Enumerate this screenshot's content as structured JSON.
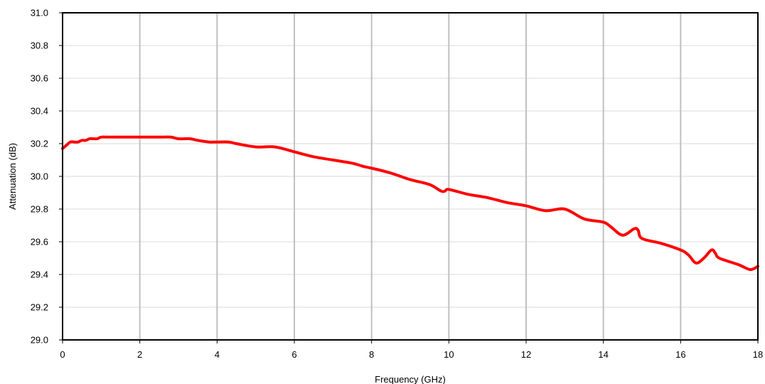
{
  "chart_data": {
    "type": "line",
    "title": "",
    "xlabel": "Frequency (GHz)",
    "ylabel": "Attenuation (dB)",
    "xlim": [
      0,
      18
    ],
    "ylim": [
      29.0,
      31.0
    ],
    "x_ticks": [
      0,
      2,
      4,
      6,
      8,
      10,
      12,
      14,
      16,
      18
    ],
    "x_tick_labels": [
      "0",
      "2",
      "4",
      "6",
      "8",
      "10",
      "12",
      "14",
      "16",
      "18"
    ],
    "y_ticks": [
      29.0,
      29.2,
      29.4,
      29.6,
      29.8,
      30.0,
      30.2,
      30.4,
      30.6,
      30.8,
      31.0
    ],
    "y_tick_labels": [
      "29.0",
      "29.2",
      "29.4",
      "29.6",
      "29.8",
      "30.0",
      "30.2",
      "30.4",
      "30.6",
      "30.8",
      "31.0"
    ],
    "grid": "vertical",
    "legend": "none",
    "colors": {
      "line": "#ff0000",
      "grid": "#c0c0c0",
      "frame": "#000000"
    },
    "series": [
      {
        "x": [
          0,
          0.1,
          0.2,
          0.3,
          0.4,
          0.5,
          0.6,
          0.7,
          0.8,
          0.9,
          1.0,
          1.2,
          1.5,
          2.0,
          2.5,
          2.8,
          3.0,
          3.3,
          3.5,
          3.8,
          4.0,
          4.3,
          4.5,
          5.0,
          5.5,
          6.0,
          6.5,
          7.0,
          7.5,
          7.8,
          8.0,
          8.5,
          9.0,
          9.5,
          9.8,
          9.9,
          10.0,
          10.5,
          11.0,
          11.5,
          12.0,
          12.5,
          13.0,
          13.5,
          14.0,
          14.2,
          14.5,
          14.8,
          14.9,
          15.0,
          15.5,
          16.0,
          16.2,
          16.4,
          16.6,
          16.8,
          16.9,
          17.0,
          17.5,
          17.8,
          18.0
        ],
        "y": [
          30.17,
          30.19,
          30.21,
          30.21,
          30.21,
          30.22,
          30.22,
          30.23,
          30.23,
          30.23,
          30.24,
          30.24,
          30.24,
          30.24,
          30.24,
          30.24,
          30.23,
          30.23,
          30.22,
          30.21,
          30.21,
          30.21,
          30.2,
          30.18,
          30.18,
          30.15,
          30.12,
          30.1,
          30.08,
          30.06,
          30.05,
          30.02,
          29.98,
          29.95,
          29.91,
          29.91,
          29.92,
          29.89,
          29.87,
          29.84,
          29.82,
          29.79,
          29.8,
          29.74,
          29.72,
          29.69,
          29.64,
          29.68,
          29.67,
          29.62,
          29.59,
          29.55,
          29.52,
          29.47,
          29.5,
          29.55,
          29.53,
          29.5,
          29.46,
          29.43,
          29.45
        ]
      }
    ]
  }
}
